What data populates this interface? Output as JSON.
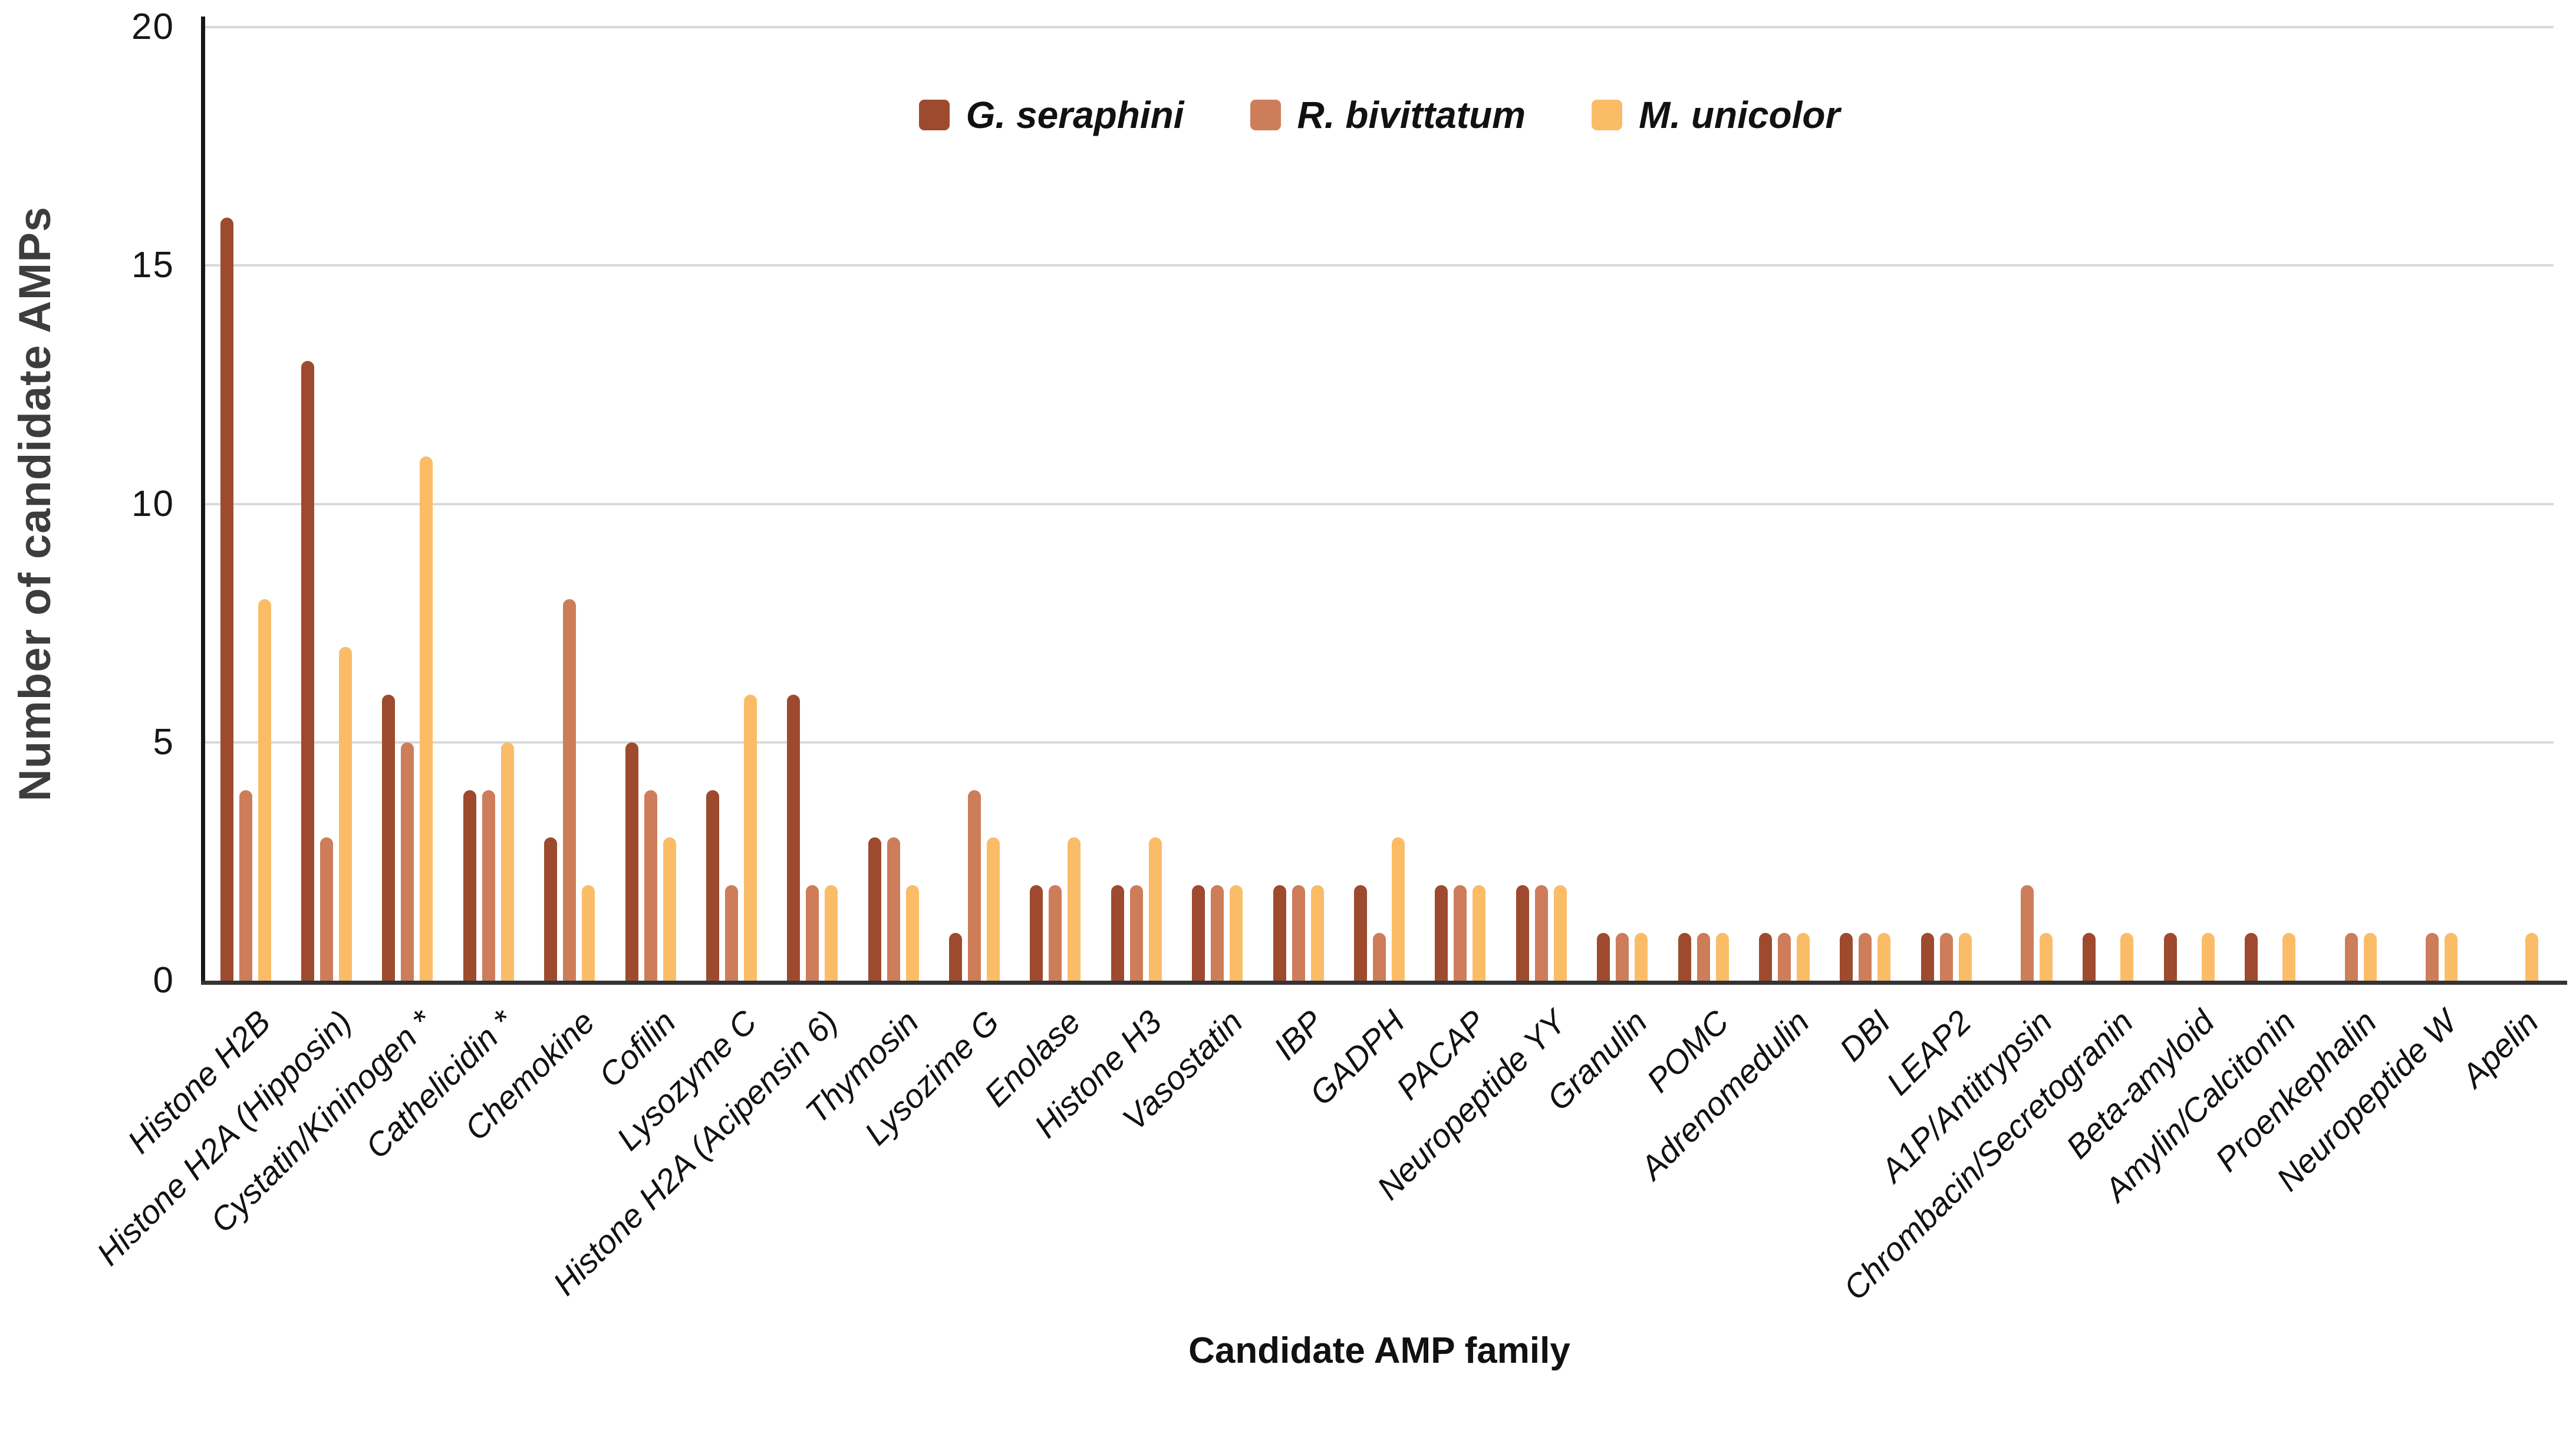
{
  "chart_data": {
    "type": "bar",
    "title": "",
    "xlabel": "Candidate AMP family",
    "ylabel": "Number of candidate AMPs",
    "ylim": [
      0,
      20
    ],
    "yticks": [
      0,
      5,
      10,
      15,
      20
    ],
    "grid": true,
    "legend_position": "top-center",
    "categories": [
      "Histone H2B",
      "Histone H2A (Hipposin)",
      "Cystatin/Kininogen *",
      "Cathelicidin *",
      "Chemokine",
      "Cofilin",
      "Lysozyme C",
      "Histone H2A (Acipensin 6)",
      "Thymosin",
      "Lysozime G",
      "Enolase",
      "Histone H3",
      "Vasostatin",
      "IBP",
      "GADPH",
      "PACAP",
      "Neuropeptide YY",
      "Granulin",
      "POMC",
      "Adrenomedulin",
      "DBI",
      "LEAP2",
      "A1P/Antitrypsin",
      "Chrombacin/Secretogranin",
      "Beta-amyloid",
      "Amylin/Calcitonin",
      "Proenkephalin",
      "Neuropeptide W",
      "Apelin"
    ],
    "series": [
      {
        "name": "G. seraphini",
        "color": "#9E4A2F",
        "values": [
          16,
          13,
          6,
          4,
          3,
          5,
          4,
          6,
          3,
          1,
          2,
          2,
          2,
          2,
          2,
          2,
          2,
          1,
          1,
          1,
          1,
          1,
          0,
          1,
          1,
          1,
          0,
          0,
          0
        ]
      },
      {
        "name": "R. bivittatum",
        "color": "#CD7D5A",
        "values": [
          4,
          3,
          5,
          4,
          8,
          4,
          2,
          2,
          3,
          4,
          2,
          2,
          2,
          2,
          1,
          2,
          2,
          1,
          1,
          1,
          1,
          1,
          2,
          0,
          0,
          0,
          1,
          1,
          0
        ]
      },
      {
        "name": "M. unicolor",
        "color": "#FBBC68",
        "values": [
          8,
          7,
          11,
          5,
          2,
          3,
          6,
          2,
          2,
          3,
          3,
          3,
          2,
          2,
          3,
          2,
          2,
          1,
          1,
          1,
          1,
          1,
          1,
          1,
          1,
          1,
          1,
          1,
          1
        ]
      }
    ]
  }
}
